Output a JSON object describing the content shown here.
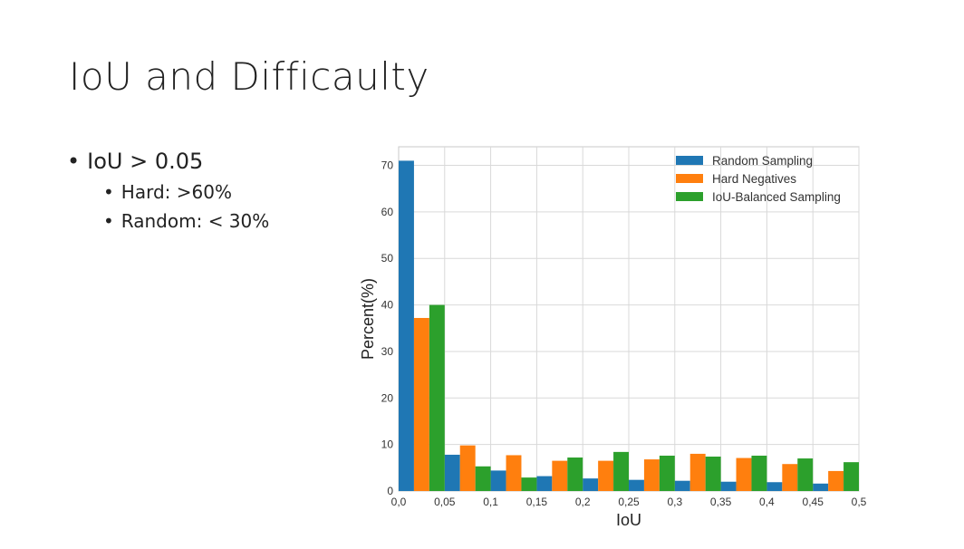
{
  "slide": {
    "title": "IoU and Difficaulty",
    "bullets": [
      {
        "level": 1,
        "text": "IoU > 0.05"
      },
      {
        "level": 2,
        "text": "Hard: >60%"
      },
      {
        "level": 2,
        "text": "Random: < 30%"
      }
    ]
  },
  "chart_data": {
    "type": "bar",
    "xlabel": "IoU",
    "ylabel": "Percent(%)",
    "xlim": [
      0.0,
      0.5
    ],
    "ylim": [
      0,
      74
    ],
    "x_bin_edges": [
      0.0,
      0.05,
      0.1,
      0.15,
      0.2,
      0.25,
      0.3,
      0.35,
      0.4,
      0.45,
      0.5
    ],
    "x_tick_labels": [
      "0,0",
      "0,05",
      "0,1",
      "0,15",
      "0,2",
      "0,25",
      "0,3",
      "0,35",
      "0,4",
      "0,45",
      "0,5"
    ],
    "y_ticks": [
      0,
      10,
      20,
      30,
      40,
      50,
      60,
      70
    ],
    "grid": true,
    "legend_position": "top-right",
    "series": [
      {
        "name": "Random Sampling",
        "color": "#1f77b4",
        "values": [
          71.0,
          7.8,
          4.4,
          3.2,
          2.7,
          2.4,
          2.2,
          2.0,
          1.9,
          1.6
        ]
      },
      {
        "name": "Hard Negatives",
        "color": "#ff7f0e",
        "values": [
          37.2,
          9.8,
          7.7,
          6.5,
          6.5,
          6.8,
          8.0,
          7.1,
          5.8,
          4.3
        ]
      },
      {
        "name": "IoU-Balanced Sampling",
        "color": "#2ca02c",
        "values": [
          40.0,
          5.3,
          2.9,
          7.2,
          8.4,
          7.6,
          7.4,
          7.6,
          7.0,
          6.2
        ]
      }
    ]
  }
}
